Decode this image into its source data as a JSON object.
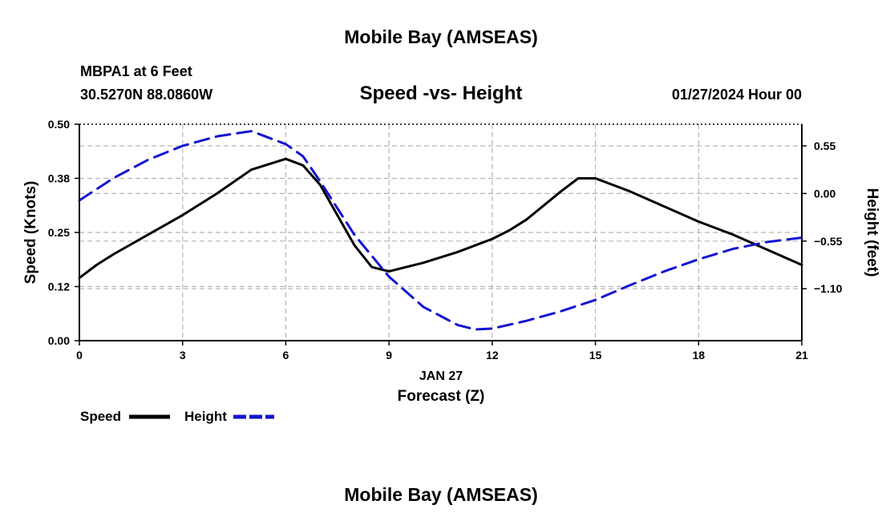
{
  "header": {
    "title": "Mobile Bay (AMSEAS)",
    "station": "MBPA1 at 6 Feet",
    "coords": "30.5270N  88.0860W",
    "datetime": "01/27/2024 Hour 00"
  },
  "footer": {
    "title": "Mobile Bay (AMSEAS)"
  },
  "legend": {
    "speed_label": "Speed",
    "height_label": "Height"
  },
  "colors": {
    "speed": "#000000",
    "height": "#1515d0",
    "grid": "#b4b4b4"
  },
  "chart_data": {
    "type": "line",
    "title": "Speed -vs- Height",
    "xlabel": "Forecast (Z)",
    "xsublabel": "JAN 27",
    "ylabel_left": "Speed (Knots)",
    "ylabel_right": "Height (feet)",
    "xlim": [
      0,
      21
    ],
    "ylim_left": [
      0,
      0.5
    ],
    "ylim_right": [
      -1.7,
      0.8
    ],
    "xticks": [
      0,
      3,
      6,
      9,
      12,
      15,
      18,
      21
    ],
    "xtick_labels": [
      "0",
      "3",
      "6",
      "9",
      "12",
      "15",
      "18",
      "21"
    ],
    "yticks_left": [
      0.0,
      0.125,
      0.25,
      0.375,
      0.5
    ],
    "ytick_labels_left": [
      "0.00",
      "0.12",
      "0.25",
      "0.38",
      "0.50"
    ],
    "yticks_right": [
      0.55,
      0.0,
      -0.55,
      -1.1
    ],
    "ytick_labels_right": [
      "0.55",
      "0.00",
      "−0.55",
      "−1.10"
    ],
    "grid": true,
    "series": [
      {
        "name": "Speed",
        "axis": "left",
        "style": "solid",
        "x": [
          0,
          0.5,
          1,
          2,
          3,
          4,
          5,
          6,
          6.5,
          7,
          8,
          8.5,
          9,
          10,
          11,
          12,
          12.5,
          13,
          14,
          14.5,
          15,
          16,
          17,
          18,
          19,
          20,
          21
        ],
        "y": [
          0.145,
          0.175,
          0.2,
          0.245,
          0.29,
          0.34,
          0.395,
          0.42,
          0.405,
          0.36,
          0.22,
          0.17,
          0.16,
          0.18,
          0.205,
          0.235,
          0.255,
          0.28,
          0.345,
          0.375,
          0.375,
          0.345,
          0.31,
          0.275,
          0.245,
          0.21,
          0.175
        ]
      },
      {
        "name": "Height",
        "axis": "right",
        "style": "dashed",
        "x": [
          0,
          0.5,
          1,
          2,
          3,
          4,
          5,
          6,
          6.5,
          7,
          8,
          9,
          10,
          11,
          11.5,
          12,
          13,
          14,
          15,
          16,
          17,
          18,
          19,
          20,
          21
        ],
        "y": [
          -0.08,
          0.05,
          0.18,
          0.39,
          0.55,
          0.66,
          0.72,
          0.57,
          0.43,
          0.14,
          -0.48,
          -0.96,
          -1.31,
          -1.52,
          -1.57,
          -1.56,
          -1.47,
          -1.36,
          -1.23,
          -1.06,
          -0.9,
          -0.76,
          -0.64,
          -0.56,
          -0.51
        ]
      }
    ]
  }
}
